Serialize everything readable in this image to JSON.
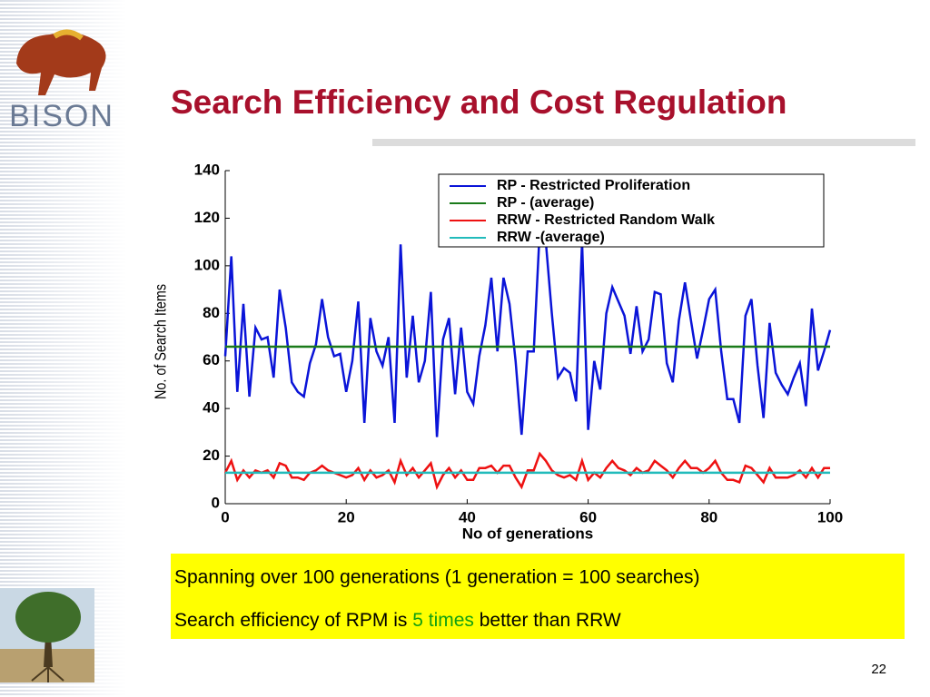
{
  "logo": "BISON",
  "title": "Search Efficiency and Cost Regulation",
  "notes": {
    "line1": "Spanning over 100 generations (1 generation = 100 searches)",
    "line2": [
      "Search efficiency of RPM is ",
      "5 times",
      " better than RRW"
    ]
  },
  "page_number": "22",
  "chart_data": {
    "type": "line",
    "xlabel": "No of generations",
    "ylabel": "No. of Search Items",
    "x": [
      0,
      1,
      2,
      3,
      4,
      5,
      6,
      7,
      8,
      9,
      10,
      11,
      12,
      13,
      14,
      15,
      16,
      17,
      18,
      19,
      20,
      21,
      22,
      23,
      24,
      25,
      26,
      27,
      28,
      29,
      30,
      31,
      32,
      33,
      34,
      35,
      36,
      37,
      38,
      39,
      40,
      41,
      42,
      43,
      44,
      45,
      46,
      47,
      48,
      49,
      50,
      51,
      52,
      53,
      54,
      55,
      56,
      57,
      58,
      59,
      60,
      61,
      62,
      63,
      64,
      65,
      66,
      67,
      68,
      69,
      70,
      71,
      72,
      73,
      74,
      75,
      76,
      77,
      78,
      79,
      80,
      81,
      82,
      83,
      84,
      85,
      86,
      87,
      88,
      89,
      90,
      91,
      92,
      93,
      94,
      95,
      96,
      97,
      98,
      99,
      100
    ],
    "series": [
      {
        "name": "RP - Restricted Proliferation",
        "color": "#0a14d8",
        "values": [
          62,
          104,
          47,
          84,
          45,
          74,
          69,
          70,
          53,
          90,
          74,
          51,
          47,
          45,
          59,
          67,
          86,
          70,
          62,
          63,
          47,
          60,
          85,
          34,
          78,
          64,
          58,
          70,
          34,
          109,
          53,
          79,
          51,
          60,
          89,
          28,
          69,
          78,
          46,
          74,
          47,
          42,
          62,
          75,
          95,
          64,
          95,
          84,
          60,
          29,
          64,
          64,
          115,
          110,
          80,
          53,
          57,
          55,
          43,
          110,
          31,
          60,
          48,
          80,
          91,
          85,
          79,
          63,
          83,
          64,
          69,
          89,
          88,
          59,
          51,
          77,
          93,
          77,
          61,
          73,
          86,
          90,
          64,
          44,
          44,
          34,
          79,
          86,
          58,
          36,
          76,
          55,
          50,
          46,
          53,
          59,
          41,
          82,
          56,
          64,
          73
        ]
      },
      {
        "name": "RP - (average)",
        "color": "#1a7a1a",
        "x": [
          0,
          100
        ],
        "values": [
          66,
          66
        ]
      },
      {
        "name": "RRW - Restricted Random Walk",
        "color": "#ee1111",
        "values": [
          13,
          18,
          10,
          14,
          11,
          14,
          13,
          14,
          11,
          17,
          16,
          11,
          11,
          10,
          13,
          14,
          16,
          14,
          13,
          12,
          11,
          12,
          15,
          10,
          14,
          11,
          12,
          14,
          9,
          18,
          12,
          15,
          11,
          14,
          17,
          7,
          12,
          15,
          11,
          14,
          10,
          10,
          15,
          15,
          16,
          13,
          16,
          16,
          11,
          7,
          14,
          14,
          21,
          18,
          14,
          12,
          11,
          12,
          10,
          18,
          10,
          13,
          11,
          15,
          18,
          15,
          14,
          12,
          15,
          13,
          14,
          18,
          16,
          14,
          11,
          15,
          18,
          15,
          15,
          13,
          15,
          18,
          13,
          10,
          10,
          9,
          16,
          15,
          12,
          9,
          15,
          11,
          11,
          11,
          12,
          14,
          11,
          15,
          11,
          15,
          15
        ]
      },
      {
        "name": "RRW -(average)",
        "color": "#22bbbb",
        "x": [
          0,
          100
        ],
        "values": [
          13,
          13
        ]
      }
    ],
    "xlim": [
      0,
      100
    ],
    "xticks": [
      0,
      20,
      40,
      60,
      80,
      100
    ],
    "ylim": [
      0,
      140
    ],
    "yticks": [
      0,
      20,
      40,
      60,
      80,
      100,
      120,
      140
    ],
    "legend": "upper right"
  }
}
